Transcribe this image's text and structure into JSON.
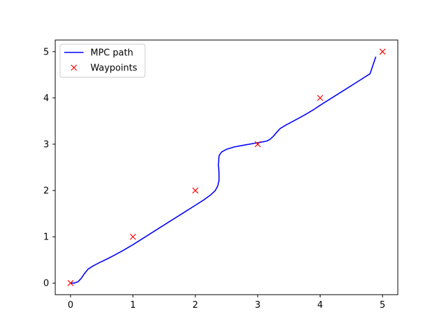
{
  "chart_data": {
    "type": "line",
    "title": "",
    "xlabel": "",
    "ylabel": "",
    "xlim": [
      -0.245,
      5.245
    ],
    "ylim": [
      -0.25,
      5.25
    ],
    "xticks": [
      0,
      1,
      2,
      3,
      4,
      5
    ],
    "yticks": [
      0,
      1,
      2,
      3,
      4,
      5
    ],
    "grid": false,
    "legend": {
      "location": "top-left"
    },
    "series": [
      {
        "name": "MPC path",
        "kind": "line",
        "color": "#0000ff",
        "x": [
          0.0,
          0.06,
          0.12,
          0.17,
          0.22,
          0.28,
          0.36,
          0.46,
          0.57,
          0.7,
          0.85,
          1.0,
          1.2,
          1.4,
          1.6,
          1.8,
          2.0,
          2.15,
          2.25,
          2.32,
          2.36,
          2.38,
          2.38,
          2.37,
          2.38,
          2.42,
          2.5,
          2.62,
          2.78,
          2.95,
          3.08,
          3.15,
          3.2,
          3.25,
          3.3,
          3.36,
          3.46,
          3.6,
          3.75,
          3.9,
          4.0,
          4.2,
          4.4,
          4.6,
          4.8,
          4.89
        ],
        "y": [
          0.0,
          0.0,
          0.03,
          0.1,
          0.2,
          0.3,
          0.37,
          0.44,
          0.51,
          0.6,
          0.71,
          0.83,
          1.0,
          1.17,
          1.34,
          1.51,
          1.68,
          1.81,
          1.91,
          2.0,
          2.1,
          2.22,
          2.38,
          2.55,
          2.75,
          2.83,
          2.89,
          2.94,
          2.98,
          3.02,
          3.05,
          3.07,
          3.11,
          3.17,
          3.25,
          3.34,
          3.42,
          3.52,
          3.63,
          3.75,
          3.84,
          4.01,
          4.18,
          4.35,
          4.52,
          4.88
        ]
      },
      {
        "name": "Waypoints",
        "kind": "markers",
        "marker": "x",
        "color": "#ff0000",
        "x": [
          0,
          1,
          2,
          3,
          4,
          5
        ],
        "y": [
          0,
          1,
          2,
          3,
          4,
          5
        ]
      }
    ]
  }
}
